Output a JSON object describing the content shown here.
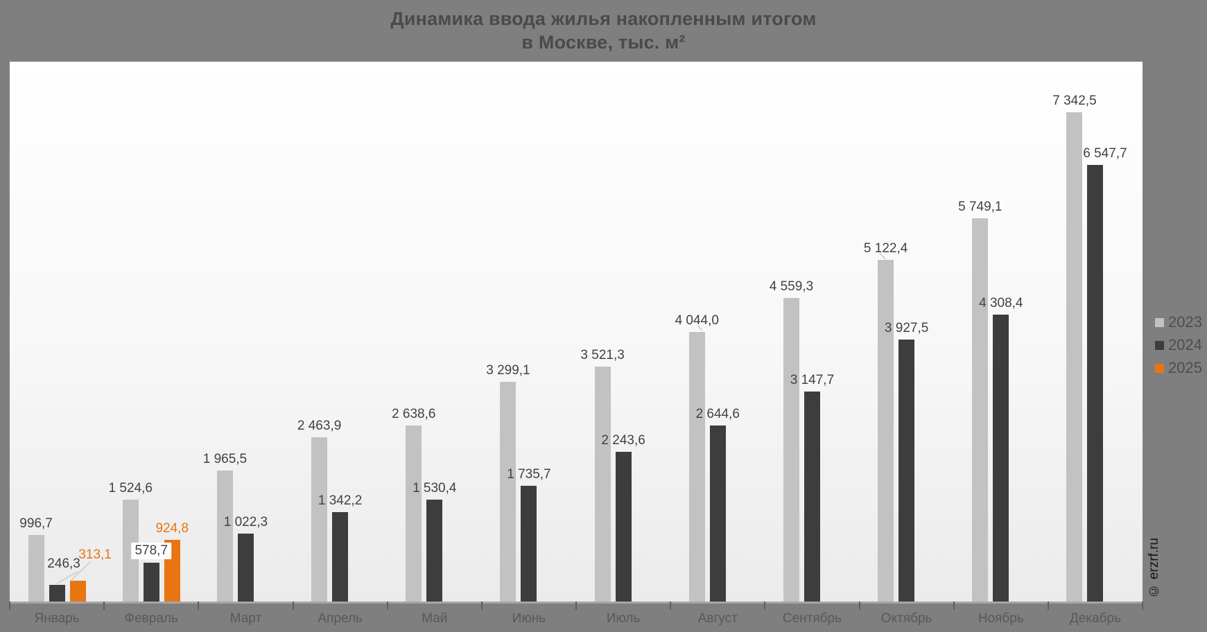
{
  "title": {
    "line1": "Динамика ввода жилья накопленным итогом",
    "line2": "в Москве, тыс. м²"
  },
  "watermark": "© erzrf.ru",
  "legend": {
    "items": [
      {
        "label": "2023",
        "color": "#c2c2c2"
      },
      {
        "label": "2024",
        "color": "#3d3d3d"
      },
      {
        "label": "2025",
        "color": "#e87511"
      }
    ]
  },
  "colors": {
    "background": "#7f7f7f",
    "bar_2023": "#c2c2c2",
    "bar_2024": "#3d3d3d",
    "bar_2025": "#e87511",
    "value_label": "#414141"
  },
  "chart_data": {
    "type": "bar",
    "title": "Динамика ввода жилья накопленным итогом в Москве, тыс. м²",
    "xlabel": "",
    "ylabel": "тыс. м²",
    "ylim": [
      0,
      8100
    ],
    "grid": false,
    "legend_position": "right",
    "value_label_format": "thousands space, decimal comma",
    "categories": [
      "Январь",
      "Февраль",
      "Март",
      "Апрель",
      "Май",
      "Июнь",
      "Июль",
      "Август",
      "Сентябрь",
      "Октябрь",
      "Ноябрь",
      "Декабрь"
    ],
    "series": [
      {
        "name": "2023",
        "color": "#c2c2c2",
        "values": [
          996.7,
          1524.6,
          1965.5,
          2463.9,
          2638.6,
          3299.1,
          3521.3,
          4044.0,
          4559.3,
          5122.4,
          5749.1,
          7342.5
        ],
        "labels": [
          "996,7",
          "1 524,6",
          "1 965,5",
          "2 463,9",
          "2 638,6",
          "3 299,1",
          "3 521,3",
          "4 044,0",
          "4 559,3",
          "5 122,4",
          "5 749,1",
          "7 342,5"
        ]
      },
      {
        "name": "2024",
        "color": "#3d3d3d",
        "values": [
          246.3,
          578.7,
          1022.3,
          1342.2,
          1530.4,
          1735.7,
          2243.6,
          2644.6,
          3147.7,
          3927.5,
          4308.4,
          6547.7
        ],
        "labels": [
          "246,3",
          "578,7",
          "1 022,3",
          "1 342,2",
          "1 530,4",
          "1 735,7",
          "2 243,6",
          "2 644,6",
          "3 147,7",
          "3 927,5",
          "4 308,4",
          "6 547,7"
        ]
      },
      {
        "name": "2025",
        "color": "#e87511",
        "values": [
          313.1,
          924.8,
          null,
          null,
          null,
          null,
          null,
          null,
          null,
          null,
          null,
          null
        ],
        "labels": [
          "313,1",
          "924,8",
          null,
          null,
          null,
          null,
          null,
          null,
          null,
          null,
          null,
          null
        ]
      }
    ]
  }
}
